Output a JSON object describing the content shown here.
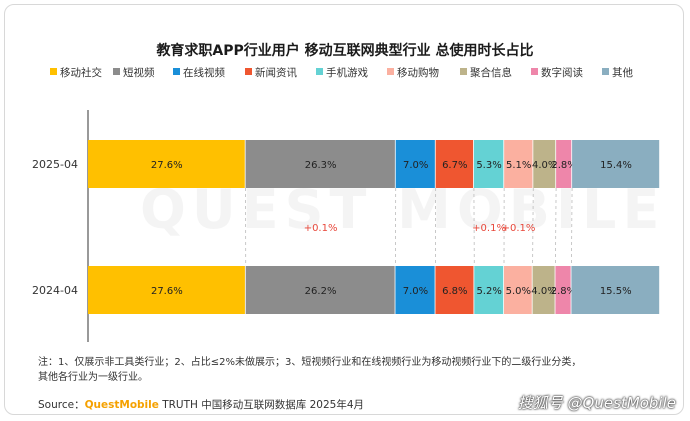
{
  "title": "教育求职APP行业用户 移动互联网典型行业 总使用时长占比",
  "chart_data": {
    "type": "bar",
    "orientation": "horizontal",
    "stacked": true,
    "normalized_percent": true,
    "categories": [
      "2025-04",
      "2024-04"
    ],
    "series": [
      {
        "name": "移动社交",
        "color": "#ffc000",
        "values": [
          27.6,
          27.6
        ]
      },
      {
        "name": "短视频",
        "color": "#8c8c8c",
        "values": [
          26.3,
          26.2
        ]
      },
      {
        "name": "在线视频",
        "color": "#1a8fd8",
        "values": [
          7.0,
          7.0
        ]
      },
      {
        "name": "新闻资讯",
        "color": "#ef5630",
        "values": [
          6.7,
          6.8
        ]
      },
      {
        "name": "手机游戏",
        "color": "#64d2d4",
        "values": [
          5.3,
          5.2
        ]
      },
      {
        "name": "移动购物",
        "color": "#fbb0a0",
        "values": [
          5.1,
          5.0
        ]
      },
      {
        "name": "聚合信息",
        "color": "#bdb38a",
        "values": [
          4.0,
          4.0
        ]
      },
      {
        "name": "数字阅读",
        "color": "#ee86aa",
        "values": [
          2.8,
          2.8
        ]
      },
      {
        "name": "其他",
        "color": "#8aaec0",
        "values": [
          15.4,
          15.5
        ]
      }
    ],
    "data_labels": [
      [
        "27.6%",
        "26.3%",
        "7.0%",
        "6.7%",
        "5.3%",
        "5.1%",
        "4.0%",
        "2.8%",
        "15.4%"
      ],
      [
        "27.6%",
        "26.2%",
        "7.0%",
        "6.8%",
        "5.2%",
        "5.0%",
        "4.0%",
        "2.8%",
        "15.5%"
      ]
    ],
    "changes": [
      {
        "series": "短视频",
        "text": "+0.1%"
      },
      {
        "series": "手机游戏",
        "text": "+0.1%"
      },
      {
        "series": "移动购物",
        "text": "+0.1%"
      }
    ],
    "change_color": "#e8473a",
    "legend_position": "top",
    "grid": false
  },
  "note": {
    "line1": "注：1、仅展示非工具类行业；2、占比≤2%未做展示；3、短视频行业和在线视频行业为移动视频行业下的二级行业分类，",
    "line2": "其他各行业为一级行业。"
  },
  "source": {
    "prefix": "Source：",
    "brand": "QuestMobile",
    "rest": " TRUTH 中国移动互联网数据库 2025年4月"
  },
  "watermark": "搜狐号 @QuestMobile",
  "background_mark": "QUEST MOBILE"
}
